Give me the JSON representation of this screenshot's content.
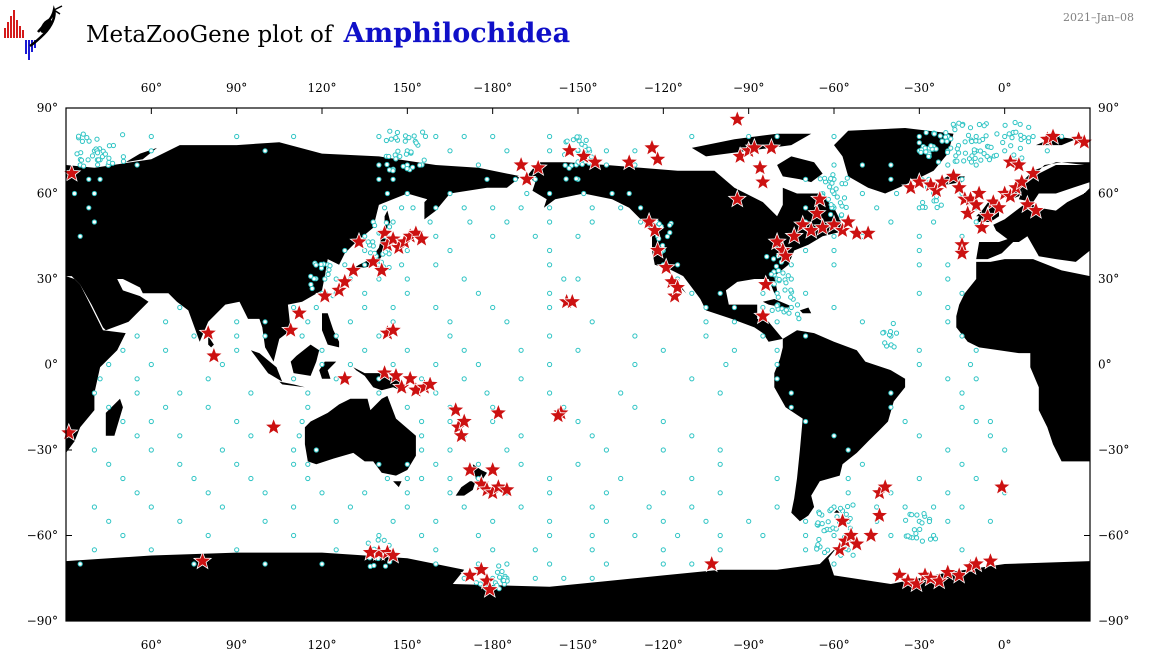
{
  "header": {
    "title_prefix": "MetaZooGene plot of",
    "taxon": "Amphilochidea",
    "date": "2021–Jan–08"
  },
  "colors": {
    "land": "#000000",
    "ocean": "#ffffff",
    "sample_station": "#2ec4c4",
    "detection": "#cc1111",
    "title_taxon": "#1010c8"
  },
  "icons": {
    "logo": "metazoogene-logo-icon",
    "sample_marker": "cyan-circle-icon",
    "detection_marker": "red-star-icon"
  },
  "map": {
    "projection": "equirectangular",
    "center_longitude": 150,
    "lon_range": [
      30,
      390
    ],
    "lat_range": [
      -90,
      90
    ],
    "top_ticks": [
      "60°",
      "90°",
      "120°",
      "150°",
      "−180°",
      "−150°",
      "−120°",
      "−90°",
      "−60°",
      "−30°",
      "0°"
    ],
    "bottom_ticks": [
      "60°",
      "90°",
      "120°",
      "150°",
      "−180°",
      "−150°",
      "−120°",
      "−90°",
      "−60°",
      "−30°",
      "0°"
    ],
    "tick_lons": [
      60,
      90,
      120,
      150,
      180,
      210,
      240,
      270,
      300,
      330,
      360
    ],
    "left_ticks": [
      "90°",
      "60°",
      "30°",
      "0°",
      "−30°",
      "−60°",
      "−90°"
    ],
    "right_ticks": [
      "90°",
      "60°",
      "30°",
      "0°",
      "−30°",
      "−60°",
      "−90°"
    ],
    "tick_lats": [
      90,
      60,
      30,
      0,
      -30,
      -60,
      -90
    ],
    "detections": [
      [
        32,
        67
      ],
      [
        31,
        -24
      ],
      [
        80,
        11
      ],
      [
        82,
        3
      ],
      [
        103,
        -22
      ],
      [
        109,
        12
      ],
      [
        112,
        18
      ],
      [
        121,
        24
      ],
      [
        126,
        26
      ],
      [
        128,
        29
      ],
      [
        131,
        33
      ],
      [
        133,
        43
      ],
      [
        138,
        36
      ],
      [
        142,
        46
      ],
      [
        143,
        42
      ],
      [
        145,
        44
      ],
      [
        147,
        41
      ],
      [
        149,
        43
      ],
      [
        151,
        45
      ],
      [
        153,
        46
      ],
      [
        155,
        44
      ],
      [
        141,
        33
      ],
      [
        143,
        11
      ],
      [
        145,
        12
      ],
      [
        128,
        -5
      ],
      [
        142,
        -3
      ],
      [
        146,
        -4
      ],
      [
        148,
        -8
      ],
      [
        151,
        -5
      ],
      [
        153,
        -9
      ],
      [
        156,
        -8
      ],
      [
        158,
        -7
      ],
      [
        167,
        -16
      ],
      [
        168,
        -22
      ],
      [
        169,
        -25
      ],
      [
        170,
        -20
      ],
      [
        172,
        -37
      ],
      [
        176,
        -42
      ],
      [
        178,
        -44
      ],
      [
        180,
        -45
      ],
      [
        182,
        -43
      ],
      [
        185,
        -44
      ],
      [
        180,
        -37
      ],
      [
        182,
        -17
      ],
      [
        140,
        -66
      ],
      [
        143,
        -66
      ],
      [
        145,
        -67
      ],
      [
        137,
        -66
      ],
      [
        78,
        -69
      ],
      [
        172,
        -74
      ],
      [
        176,
        -72
      ],
      [
        178,
        -76
      ],
      [
        179,
        -79
      ],
      [
        204,
        -17
      ],
      [
        203,
        -18
      ],
      [
        206,
        22
      ],
      [
        208,
        22
      ],
      [
        190,
        70
      ],
      [
        192,
        65
      ],
      [
        196,
        69
      ],
      [
        207,
        75
      ],
      [
        212,
        73
      ],
      [
        216,
        71
      ],
      [
        228,
        71
      ],
      [
        236,
        76
      ],
      [
        238,
        72
      ],
      [
        235,
        50
      ],
      [
        237,
        47
      ],
      [
        238,
        40
      ],
      [
        241,
        34
      ],
      [
        243,
        29
      ],
      [
        244,
        24
      ],
      [
        245,
        27
      ],
      [
        257,
        -70
      ],
      [
        266,
        86
      ],
      [
        267,
        73
      ],
      [
        270,
        75
      ],
      [
        272,
        76
      ],
      [
        266,
        58
      ],
      [
        274,
        69
      ],
      [
        275,
        64
      ],
      [
        278,
        76
      ],
      [
        280,
        43
      ],
      [
        282,
        40
      ],
      [
        283,
        38
      ],
      [
        286,
        45
      ],
      [
        289,
        49
      ],
      [
        292,
        47
      ],
      [
        294,
        53
      ],
      [
        295,
        58
      ],
      [
        296,
        48
      ],
      [
        300,
        49
      ],
      [
        303,
        47
      ],
      [
        305,
        50
      ],
      [
        308,
        46
      ],
      [
        312,
        46
      ],
      [
        276,
        28
      ],
      [
        275,
        17
      ],
      [
        302,
        -65
      ],
      [
        304,
        -62
      ],
      [
        306,
        -60
      ],
      [
        303,
        -55
      ],
      [
        308,
        -63
      ],
      [
        313,
        -60
      ],
      [
        316,
        -53
      ],
      [
        316,
        -45
      ],
      [
        318,
        -43
      ],
      [
        323,
        -74
      ],
      [
        326,
        -76
      ],
      [
        329,
        -77
      ],
      [
        332,
        -74
      ],
      [
        334,
        -75
      ],
      [
        337,
        -76
      ],
      [
        340,
        -73
      ],
      [
        344,
        -74
      ],
      [
        348,
        -71
      ],
      [
        350,
        -70
      ],
      [
        355,
        -69
      ],
      [
        327,
        62
      ],
      [
        330,
        64
      ],
      [
        334,
        63
      ],
      [
        336,
        61
      ],
      [
        338,
        64
      ],
      [
        342,
        66
      ],
      [
        344,
        62
      ],
      [
        346,
        58
      ],
      [
        347,
        53
      ],
      [
        345,
        42
      ],
      [
        345,
        39
      ],
      [
        348,
        58
      ],
      [
        350,
        56
      ],
      [
        351,
        60
      ],
      [
        352,
        48
      ],
      [
        354,
        52
      ],
      [
        356,
        57
      ],
      [
        358,
        55
      ],
      [
        360,
        60
      ],
      [
        362,
        59
      ],
      [
        364,
        62
      ],
      [
        366,
        64
      ],
      [
        368,
        56
      ],
      [
        370,
        67
      ],
      [
        371,
        54
      ],
      [
        362,
        71
      ],
      [
        365,
        70
      ],
      [
        375,
        79
      ],
      [
        377,
        80
      ],
      [
        386,
        79
      ],
      [
        388,
        78
      ],
      [
        359,
        -43
      ]
    ],
    "stations_rows": [
      [
        80,
        60,
        90,
        110,
        140,
        160,
        170,
        180,
        200,
        250,
        270,
        280,
        300,
        330,
        340,
        350,
        360,
        370,
        380
      ],
      [
        75,
        40,
        60,
        100,
        150,
        165,
        185,
        200,
        210,
        220,
        230,
        330,
        340,
        350,
        360,
        375
      ],
      [
        70,
        35,
        45,
        55,
        140,
        150,
        175,
        190,
        220,
        230,
        300,
        310,
        320,
        340,
        350
      ],
      [
        65,
        38,
        42,
        140,
        145,
        178,
        188,
        195,
        210,
        290,
        300,
        320,
        345
      ],
      [
        60,
        33,
        40,
        143,
        150,
        165,
        192,
        200,
        212,
        222,
        228,
        300,
        310,
        322,
        335,
        345
      ],
      [
        55,
        38,
        142,
        148,
        152,
        160,
        170,
        180,
        190,
        200,
        215,
        225,
        232,
        290,
        300,
        315,
        330,
        350
      ],
      [
        50,
        40,
        138,
        145,
        158,
        172,
        185,
        200,
        215,
        232,
        290,
        300,
        320,
        335,
        350
      ],
      [
        45,
        35,
        135,
        142,
        150,
        160,
        180,
        195,
        210,
        238,
        300,
        310,
        330,
        345
      ],
      [
        40,
        128,
        135,
        143,
        150,
        165,
        200,
        240,
        290,
        300,
        330,
        345
      ],
      [
        35,
        122,
        128,
        135,
        140,
        148,
        160,
        200,
        240,
        245,
        285,
        300,
        330,
        340
      ],
      [
        30,
        121,
        125,
        130,
        140,
        150,
        170,
        205,
        210,
        245,
        280,
        285,
        340
      ],
      [
        25,
        120,
        125,
        135,
        150,
        175,
        200,
        250,
        260,
        275,
        280,
        290,
        330,
        345
      ],
      [
        20,
        70,
        110,
        118,
        135,
        145,
        160,
        180,
        200,
        255,
        265,
        275,
        285,
        300,
        340
      ],
      [
        15,
        65,
        90,
        100,
        115,
        130,
        145,
        165,
        185,
        215,
        255,
        265,
        280,
        310,
        340
      ],
      [
        10,
        55,
        75,
        90,
        100,
        113,
        125,
        140,
        165,
        200,
        230,
        255,
        275,
        290,
        320,
        345
      ],
      [
        5,
        50,
        65,
        90,
        120,
        135,
        150,
        170,
        190,
        210,
        240,
        265,
        280,
        330,
        350
      ],
      [
        0,
        45,
        60,
        85,
        120,
        130,
        145,
        160,
        175,
        200,
        230,
        262,
        280,
        330,
        348
      ],
      [
        -5,
        42,
        55,
        80,
        110,
        125,
        140,
        155,
        170,
        190,
        250,
        280,
        340,
        350
      ],
      [
        -10,
        40,
        55,
        70,
        95,
        115,
        140,
        160,
        178,
        200,
        225,
        260,
        285,
        320,
        345
      ],
      [
        -15,
        45,
        65,
        80,
        115,
        150,
        165,
        180,
        205,
        230,
        285,
        320,
        345
      ],
      [
        -20,
        50,
        60,
        90,
        113,
        155,
        165,
        180,
        210,
        240,
        290,
        325,
        350,
        355
      ],
      [
        -25,
        55,
        70,
        95,
        112,
        155,
        170,
        190,
        215,
        250,
        300,
        330,
        355
      ],
      [
        -30,
        40,
        60,
        85,
        110,
        118,
        155,
        165,
        185,
        220,
        240,
        260,
        305,
        340,
        360
      ],
      [
        -35,
        45,
        70,
        90,
        110,
        115,
        140,
        150,
        160,
        175,
        190,
        210,
        260,
        310,
        345
      ],
      [
        -40,
        50,
        75,
        95,
        115,
        143,
        150,
        155,
        165,
        175,
        200,
        225,
        250,
        280,
        305,
        330,
        350
      ],
      [
        -45,
        55,
        80,
        100,
        120,
        135,
        150,
        165,
        185,
        200,
        220,
        240,
        260,
        305,
        320,
        340,
        360
      ],
      [
        -50,
        40,
        60,
        85,
        110,
        130,
        150,
        170,
        190,
        215,
        235,
        250,
        280,
        300,
        315,
        325,
        335,
        345
      ],
      [
        -55,
        45,
        70,
        100,
        125,
        145,
        160,
        180,
        200,
        220,
        240,
        255,
        270,
        290,
        305,
        315,
        330,
        340,
        355
      ],
      [
        -60,
        50,
        80,
        110,
        140,
        155,
        175,
        200,
        215,
        230,
        245,
        260,
        275,
        290,
        300,
        320,
        335
      ],
      [
        -65,
        40,
        60,
        90,
        125,
        160,
        180,
        195,
        215,
        240,
        260,
        290,
        305,
        345
      ],
      [
        -70,
        35,
        75,
        100,
        120,
        160,
        175,
        185,
        200,
        220,
        240,
        250,
        300
      ],
      [
        -75,
        170,
        180,
        185,
        195,
        205,
        215
      ]
    ],
    "stations_clusters": [
      [
        42,
        75,
        18,
        12
      ],
      [
        150,
        75,
        15,
        14
      ],
      [
        210,
        72,
        10,
        16
      ],
      [
        350,
        78,
        40,
        14
      ],
      [
        300,
        60,
        10,
        18
      ],
      [
        335,
        60,
        8,
        10
      ],
      [
        140,
        42,
        8,
        16
      ],
      [
        280,
        35,
        8,
        10
      ],
      [
        300,
        -58,
        14,
        18
      ],
      [
        330,
        -57,
        12,
        10
      ],
      [
        180,
        -75,
        12,
        10
      ],
      [
        140,
        -66,
        8,
        10
      ],
      [
        283,
        23,
        10,
        14
      ],
      [
        320,
        10,
        6,
        10
      ],
      [
        240,
        45,
        6,
        12
      ],
      [
        120,
        30,
        8,
        12
      ]
    ]
  }
}
